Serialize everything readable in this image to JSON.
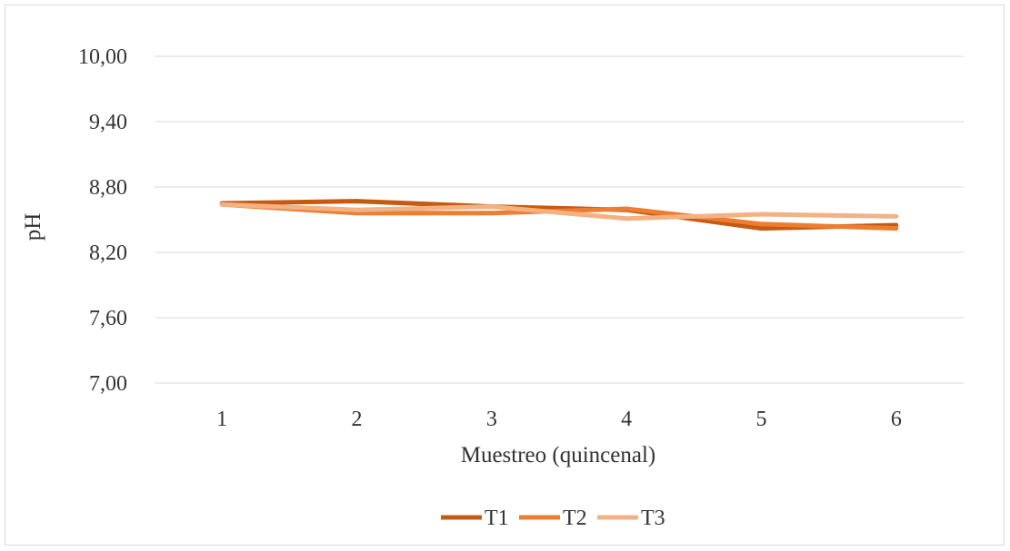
{
  "chart_data": {
    "type": "line",
    "title": "",
    "xlabel": "Muestreo (quincenal)",
    "ylabel": "pH",
    "categories": [
      "1",
      "2",
      "3",
      "4",
      "5",
      "6"
    ],
    "y_ticks": [
      "7,00",
      "7,60",
      "8,20",
      "8,80",
      "9,40",
      "10,00"
    ],
    "ylim": [
      7.0,
      10.0
    ],
    "grid": true,
    "legend_position": "bottom",
    "series": [
      {
        "name": "T1",
        "color": "#c55a11",
        "values": [
          8.65,
          8.67,
          8.62,
          8.59,
          8.42,
          8.45
        ]
      },
      {
        "name": "T2",
        "color": "#ed7d31",
        "values": [
          8.64,
          8.56,
          8.56,
          8.6,
          8.46,
          8.42
        ]
      },
      {
        "name": "T3",
        "color": "#f4b183",
        "values": [
          8.64,
          8.59,
          8.62,
          8.51,
          8.55,
          8.53
        ]
      }
    ]
  }
}
